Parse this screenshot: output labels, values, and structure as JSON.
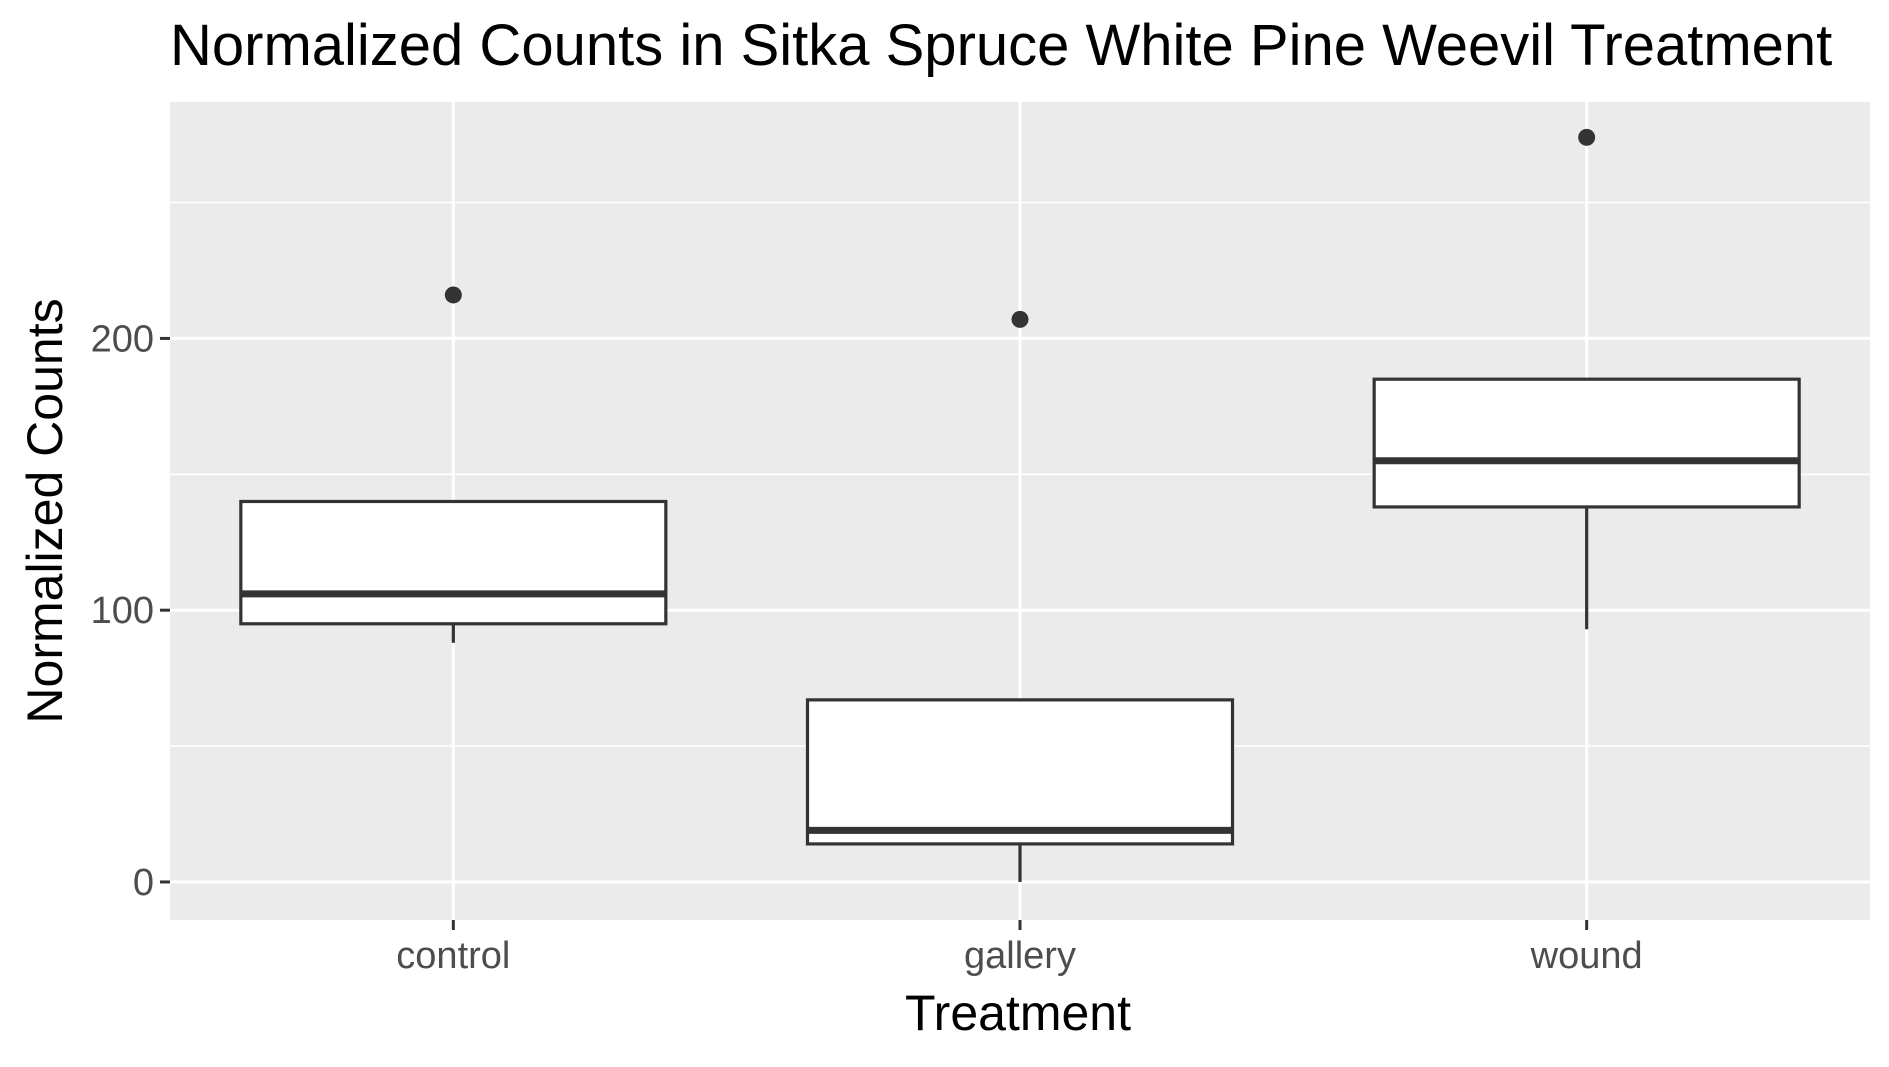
{
  "chart_data": {
    "type": "boxplot",
    "title": "Normalized Counts in Sitka Spruce White Pine Weevil Treatment",
    "xlabel": "Treatment",
    "ylabel": "Normalized Counts",
    "categories": [
      "control",
      "gallery",
      "wound"
    ],
    "y_ticks": [
      0,
      100,
      200
    ],
    "ylim": [
      -14,
      287
    ],
    "grid": true,
    "boxes": [
      {
        "category": "control",
        "lower_whisker": 88,
        "q1": 95,
        "median": 106,
        "q3": 140,
        "upper_whisker": 140,
        "outliers": [
          216
        ]
      },
      {
        "category": "gallery",
        "lower_whisker": 0,
        "q1": 14,
        "median": 19,
        "q3": 67,
        "upper_whisker": 67,
        "outliers": [
          207
        ]
      },
      {
        "category": "wound",
        "lower_whisker": 93,
        "q1": 138,
        "median": 155,
        "q3": 185,
        "upper_whisker": 185,
        "outliers": [
          274
        ]
      }
    ],
    "colors": {
      "panel_background": "#ebebeb",
      "grid_major": "#ffffff",
      "grid_minor": "#ffffff",
      "box_fill": "#ffffff",
      "box_line": "#333333",
      "outlier": "#333333",
      "tick_text": "#4d4d4d",
      "tick_mark": "#333333",
      "title_text": "#000000"
    }
  }
}
